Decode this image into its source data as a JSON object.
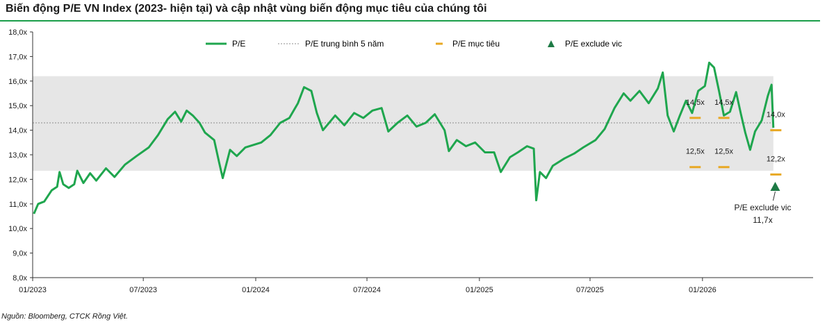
{
  "title": "Biến động P/E VN Index (2023- hiện tại) và cập nhật  vùng biến động mục tiêu của chúng tôi",
  "source": "Nguồn: Bloomberg, CTCK Rồng Việt.",
  "colors": {
    "line": "#1fa64e",
    "avg": "#8c8c8c",
    "target": "#e8a823",
    "triangle": "#1e7a45",
    "band": "#e6e6e6",
    "rule": "#1a9e4a"
  },
  "chart_data": {
    "type": "line",
    "title": "Biến động P/E VN Index (2023- hiện tại) và cập nhật  vùng biến động mục tiêu của chúng tôi",
    "xlabel": "",
    "ylabel": "",
    "ylim": [
      8,
      18
    ],
    "xlim": [
      "2023-01-01",
      "2026-07-01"
    ],
    "grid": false,
    "legend_position": "top-center",
    "y_tick_labels": [
      "8,0x",
      "9,0x",
      "10,0x",
      "11,0x",
      "12,0x",
      "13,0x",
      "14,0x",
      "15,0x",
      "16,0x",
      "17,0x",
      "18,0x"
    ],
    "x_ticks": [
      {
        "date": "2023-01-01",
        "label": "01/2023"
      },
      {
        "date": "2023-07-01",
        "label": "07/2023"
      },
      {
        "date": "2024-01-01",
        "label": "01/2024"
      },
      {
        "date": "2024-07-01",
        "label": "07/2024"
      },
      {
        "date": "2025-01-01",
        "label": "01/2025"
      },
      {
        "date": "2025-07-01",
        "label": "07/2025"
      },
      {
        "date": "2026-01-01",
        "label": "01/2026"
      }
    ],
    "legend": [
      "P/E",
      "P/E trung bình 5 năm",
      "P/E mục tiêu",
      "P/E exclude vic"
    ],
    "band": [
      12.35,
      16.2
    ],
    "series": [
      {
        "name": "P/E",
        "points": [
          [
            "2023-01-03",
            10.6
          ],
          [
            "2023-01-10",
            11.0
          ],
          [
            "2023-01-20",
            11.1
          ],
          [
            "2023-02-01",
            11.55
          ],
          [
            "2023-02-10",
            11.7
          ],
          [
            "2023-02-14",
            12.3
          ],
          [
            "2023-02-20",
            11.8
          ],
          [
            "2023-03-01",
            11.65
          ],
          [
            "2023-03-10",
            11.8
          ],
          [
            "2023-03-15",
            12.35
          ],
          [
            "2023-03-25",
            11.85
          ],
          [
            "2023-04-05",
            12.25
          ],
          [
            "2023-04-15",
            11.95
          ],
          [
            "2023-05-01",
            12.45
          ],
          [
            "2023-05-15",
            12.1
          ],
          [
            "2023-06-01",
            12.6
          ],
          [
            "2023-06-20",
            12.95
          ],
          [
            "2023-07-10",
            13.3
          ],
          [
            "2023-07-25",
            13.8
          ],
          [
            "2023-08-10",
            14.45
          ],
          [
            "2023-08-22",
            14.75
          ],
          [
            "2023-09-01",
            14.35
          ],
          [
            "2023-09-10",
            14.8
          ],
          [
            "2023-09-20",
            14.6
          ],
          [
            "2023-10-01",
            14.3
          ],
          [
            "2023-10-10",
            13.9
          ],
          [
            "2023-10-25",
            13.6
          ],
          [
            "2023-11-02",
            12.7
          ],
          [
            "2023-11-08",
            12.05
          ],
          [
            "2023-11-20",
            13.2
          ],
          [
            "2023-12-01",
            12.95
          ],
          [
            "2023-12-15",
            13.3
          ],
          [
            "2024-01-10",
            13.5
          ],
          [
            "2024-01-25",
            13.8
          ],
          [
            "2024-02-10",
            14.3
          ],
          [
            "2024-02-25",
            14.5
          ],
          [
            "2024-03-10",
            15.1
          ],
          [
            "2024-03-20",
            15.75
          ],
          [
            "2024-04-01",
            15.6
          ],
          [
            "2024-04-10",
            14.7
          ],
          [
            "2024-04-20",
            14.0
          ],
          [
            "2024-05-10",
            14.6
          ],
          [
            "2024-05-25",
            14.2
          ],
          [
            "2024-06-10",
            14.7
          ],
          [
            "2024-06-25",
            14.5
          ],
          [
            "2024-07-10",
            14.8
          ],
          [
            "2024-07-25",
            14.9
          ],
          [
            "2024-08-05",
            13.95
          ],
          [
            "2024-08-20",
            14.3
          ],
          [
            "2024-09-05",
            14.6
          ],
          [
            "2024-09-20",
            14.15
          ],
          [
            "2024-10-05",
            14.3
          ],
          [
            "2024-10-20",
            14.65
          ],
          [
            "2024-11-05",
            14.0
          ],
          [
            "2024-11-12",
            13.15
          ],
          [
            "2024-11-25",
            13.6
          ],
          [
            "2024-12-10",
            13.35
          ],
          [
            "2024-12-25",
            13.5
          ],
          [
            "2025-01-10",
            13.1
          ],
          [
            "2025-01-25",
            13.1
          ],
          [
            "2025-02-05",
            12.3
          ],
          [
            "2025-02-20",
            12.9
          ],
          [
            "2025-03-05",
            13.1
          ],
          [
            "2025-03-20",
            13.35
          ],
          [
            "2025-03-31",
            13.25
          ],
          [
            "2025-04-04",
            11.15
          ],
          [
            "2025-04-10",
            12.3
          ],
          [
            "2025-04-20",
            12.05
          ],
          [
            "2025-05-01",
            12.55
          ],
          [
            "2025-05-20",
            12.85
          ],
          [
            "2025-06-05",
            13.05
          ],
          [
            "2025-06-20",
            13.3
          ],
          [
            "2025-07-10",
            13.6
          ],
          [
            "2025-07-25",
            14.05
          ],
          [
            "2025-08-10",
            14.9
          ],
          [
            "2025-08-25",
            15.5
          ],
          [
            "2025-09-05",
            15.2
          ],
          [
            "2025-09-20",
            15.6
          ],
          [
            "2025-10-05",
            15.1
          ],
          [
            "2025-10-20",
            15.7
          ],
          [
            "2025-10-28",
            16.35
          ],
          [
            "2025-11-05",
            14.6
          ],
          [
            "2025-11-15",
            13.95
          ],
          [
            "2025-11-25",
            14.6
          ],
          [
            "2025-12-05",
            15.2
          ],
          [
            "2025-12-15",
            14.7
          ],
          [
            "2025-12-25",
            15.6
          ],
          [
            "2026-01-05",
            15.8
          ],
          [
            "2026-01-12",
            16.75
          ],
          [
            "2026-01-20",
            16.55
          ],
          [
            "2026-01-28",
            15.6
          ],
          [
            "2026-02-05",
            14.6
          ],
          [
            "2026-02-15",
            14.75
          ],
          [
            "2026-02-25",
            15.55
          ],
          [
            "2026-03-05",
            14.65
          ],
          [
            "2026-03-12",
            13.9
          ],
          [
            "2026-03-20",
            13.2
          ],
          [
            "2026-03-28",
            13.95
          ],
          [
            "2026-04-08",
            14.4
          ],
          [
            "2026-04-18",
            15.4
          ],
          [
            "2026-04-24",
            15.85
          ],
          [
            "2026-04-27",
            14.1
          ]
        ]
      }
    ],
    "average_pe": 14.3,
    "targets": [
      {
        "date": "2025-12-20",
        "value": 14.5,
        "label": "14,5x"
      },
      {
        "date": "2026-02-05",
        "value": 14.5,
        "label": "14,5x"
      },
      {
        "date": "2025-12-20",
        "value": 12.5,
        "label": "12,5x"
      },
      {
        "date": "2026-02-05",
        "value": 12.5,
        "label": "12,5x"
      },
      {
        "date": "2026-05-01",
        "value": 14.0,
        "label": "14,0x"
      },
      {
        "date": "2026-05-01",
        "value": 12.2,
        "label": "12,2x"
      }
    ],
    "exclude_vic": {
      "date": "2026-04-30",
      "value": 11.7,
      "label_line1": "P/E exclude vic",
      "label_line2": "11,7x"
    }
  }
}
